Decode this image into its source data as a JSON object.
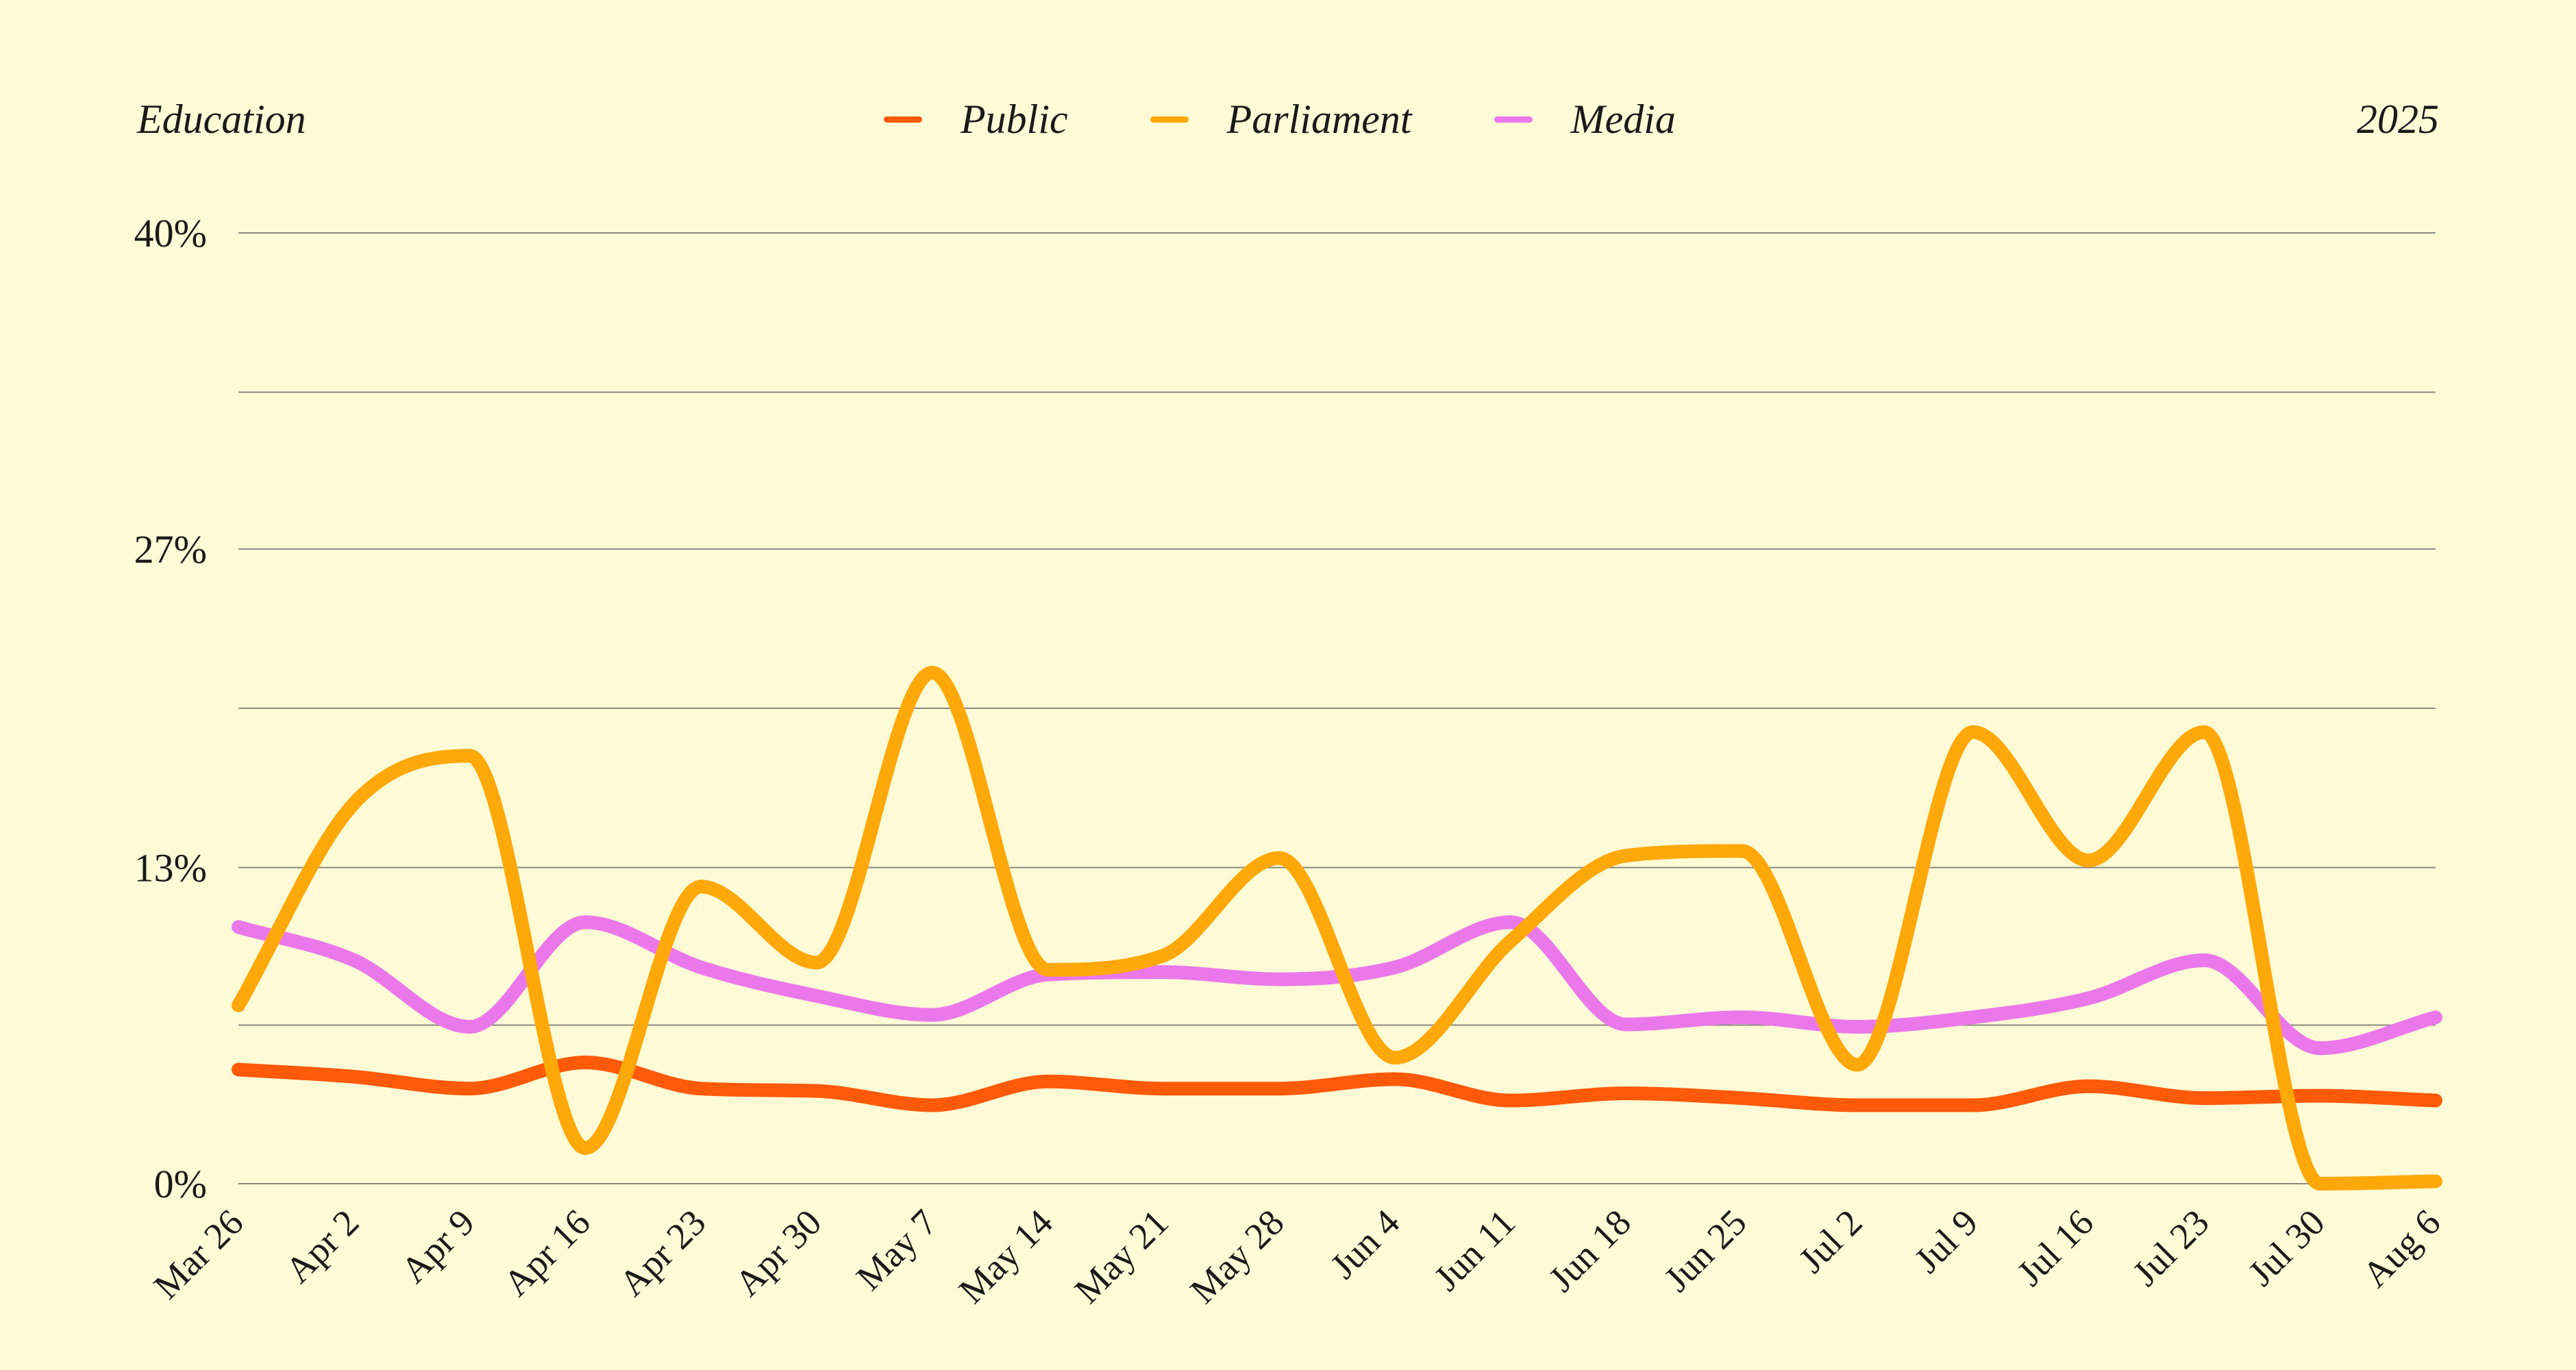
{
  "header": {
    "left_title": "Education",
    "right_title": "2025"
  },
  "chart_data": {
    "type": "line",
    "categories": [
      "Mar 26",
      "Apr 2",
      "Apr 9",
      "Apr 16",
      "Apr 23",
      "Apr 30",
      "May 7",
      "May 14",
      "May 21",
      "May 28",
      "Jun 4",
      "Jun 11",
      "Jun 18",
      "Jun 25",
      "Jul 2",
      "Jul 9",
      "Jul 16",
      "Jul 23",
      "Jul 30",
      "Aug 6"
    ],
    "ylim": [
      0,
      40
    ],
    "yticks": [
      "0%",
      "13%",
      "27%",
      "40%"
    ],
    "ytick_values": [
      0,
      13.3,
      26.7,
      40
    ],
    "grid_values": [
      0,
      6.67,
      13.3,
      20,
      26.7,
      33.3,
      40
    ],
    "grid": true,
    "legend_position": "top",
    "series": [
      {
        "name": "Public",
        "color": "#FF5A0A",
        "values": [
          4.8,
          4.5,
          4.0,
          5.1,
          4.0,
          3.9,
          3.3,
          4.3,
          4.0,
          4.0,
          4.4,
          3.5,
          3.8,
          3.6,
          3.3,
          3.3,
          4.1,
          3.6,
          3.7,
          3.5
        ]
      },
      {
        "name": "Parliament",
        "color": "#FFA80A",
        "values": [
          7.5,
          16.0,
          18.0,
          1.5,
          12.5,
          9.3,
          21.5,
          9.0,
          9.6,
          13.7,
          5.3,
          10.2,
          13.8,
          14.0,
          5.0,
          19.0,
          13.6,
          19.0,
          0.0,
          0.1
        ]
      },
      {
        "name": "Media",
        "color": "#EB78EB",
        "values": [
          10.8,
          9.4,
          6.6,
          11.0,
          9.1,
          7.9,
          7.1,
          8.8,
          8.9,
          8.6,
          9.1,
          11.0,
          6.7,
          7.0,
          6.6,
          7.0,
          7.8,
          9.4,
          5.7,
          7.0
        ]
      }
    ]
  }
}
